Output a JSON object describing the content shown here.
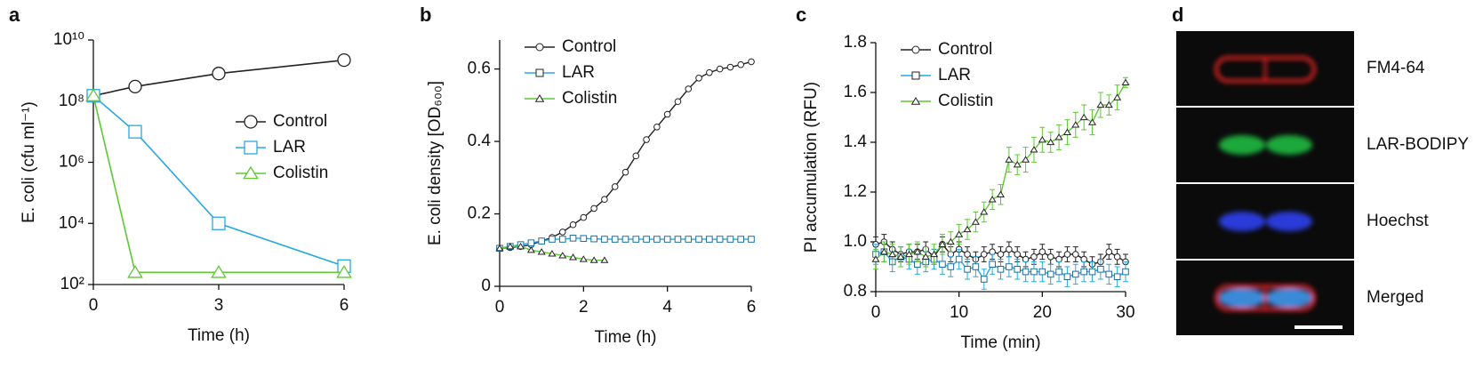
{
  "chart_data": [
    {
      "type": "line",
      "panel_label": "a",
      "xlabel": "Time (h)",
      "ylabel": "E. coli (cfu ml⁻¹)",
      "log_scale_y": true,
      "legend": "center right",
      "x": [
        0,
        1,
        3,
        6
      ],
      "xlim": [
        0,
        6
      ],
      "xticks": [
        0,
        3,
        6
      ],
      "ylim": [
        100,
        10000000000
      ],
      "yticks": [
        {
          "value": 100,
          "label": "10²"
        },
        {
          "value": 10000,
          "label": "10⁴"
        },
        {
          "value": 1000000,
          "label": "10⁶"
        },
        {
          "value": 100000000,
          "label": "10⁸"
        },
        {
          "value": 10000000000,
          "label": "10¹⁰"
        }
      ],
      "series": [
        {
          "name": "Control",
          "color": "#222222",
          "marker": "circle",
          "values": [
            150000000,
            300000000,
            800000000,
            2200000000
          ]
        },
        {
          "name": "LAR",
          "color": "#29a8e0",
          "marker": "square",
          "values": [
            150000000,
            10000000,
            10000,
            400
          ]
        },
        {
          "name": "Colistin",
          "color": "#5dc832",
          "marker": "triangle",
          "values": [
            150000000,
            250,
            250,
            250
          ]
        }
      ]
    },
    {
      "type": "line",
      "panel_label": "b",
      "xlabel": "Time (h)",
      "ylabel": "E. coli density [OD₆₀₀]",
      "log_scale_y": false,
      "legend": "upper left",
      "x": [
        0,
        0.25,
        0.5,
        0.75,
        1,
        1.25,
        1.5,
        1.75,
        2,
        2.25,
        2.5,
        2.75,
        3,
        3.25,
        3.5,
        3.75,
        4,
        4.25,
        4.5,
        4.75,
        5,
        5.25,
        5.5,
        5.75,
        6
      ],
      "xlim": [
        0,
        6
      ],
      "xticks": [
        0,
        2,
        4,
        6
      ],
      "ylim": [
        0,
        0.68
      ],
      "yticks": [
        0,
        0.2,
        0.4,
        0.6
      ],
      "series": [
        {
          "name": "Control",
          "color": "#222222",
          "marker": "circle",
          "values": [
            0.105,
            0.107,
            0.11,
            0.115,
            0.125,
            0.135,
            0.15,
            0.17,
            0.19,
            0.215,
            0.24,
            0.275,
            0.315,
            0.36,
            0.405,
            0.44,
            0.475,
            0.51,
            0.545,
            0.575,
            0.59,
            0.6,
            0.605,
            0.612,
            0.62
          ]
        },
        {
          "name": "LAR",
          "color": "#29a8e0",
          "marker": "square",
          "values": [
            0.105,
            0.11,
            0.115,
            0.12,
            0.125,
            0.13,
            0.13,
            0.133,
            0.132,
            0.131,
            0.13,
            0.13,
            0.13,
            0.13,
            0.13,
            0.13,
            0.13,
            0.13,
            0.13,
            0.13,
            0.13,
            0.13,
            0.13,
            0.13,
            0.13
          ]
        },
        {
          "name": "Colistin",
          "color": "#5dc832",
          "marker": "triangle",
          "values": [
            0.105,
            0.11,
            0.11,
            0.1,
            0.095,
            0.09,
            0.085,
            0.08,
            0.075,
            0.072,
            0.072,
            null,
            null,
            null,
            null,
            null,
            null,
            null,
            null,
            null,
            null,
            null,
            null,
            null,
            null
          ]
        }
      ]
    },
    {
      "type": "line",
      "panel_label": "c",
      "xlabel": "Time (min)",
      "ylabel": "PI accumulation (RFU)",
      "log_scale_y": false,
      "legend": "upper left",
      "x": [
        0,
        1,
        2,
        3,
        4,
        5,
        6,
        7,
        8,
        9,
        10,
        11,
        12,
        13,
        14,
        15,
        16,
        17,
        18,
        19,
        20,
        21,
        22,
        23,
        24,
        25,
        26,
        27,
        28,
        29,
        30
      ],
      "xlim": [
        0,
        30
      ],
      "xticks": [
        0,
        10,
        20,
        30
      ],
      "ylim": [
        0.8,
        1.8
      ],
      "yticks": [
        0.8,
        {
          "value": 1,
          "label": "1.0"
        },
        1.2,
        1.4,
        1.6,
        1.8
      ],
      "series": [
        {
          "name": "Control",
          "color": "#222222",
          "marker": "circle",
          "values": [
            0.99,
            1.0,
            0.97,
            0.95,
            0.96,
            0.96,
            0.97,
            0.94,
            0.99,
            0.95,
            0.97,
            0.95,
            0.93,
            0.95,
            0.96,
            0.95,
            0.97,
            0.95,
            0.93,
            0.94,
            0.96,
            0.94,
            0.93,
            0.95,
            0.95,
            0.93,
            0.91,
            0.92,
            0.96,
            0.94,
            0.92
          ],
          "errors": [
            0.03,
            0.03,
            0.03,
            0.03,
            0.03,
            0.03,
            0.03,
            0.03,
            0.03,
            0.03,
            0.03,
            0.03,
            0.03,
            0.03,
            0.03,
            0.03,
            0.03,
            0.03,
            0.03,
            0.03,
            0.03,
            0.03,
            0.03,
            0.03,
            0.03,
            0.03,
            0.03,
            0.03,
            0.03,
            0.03,
            0.03
          ]
        },
        {
          "name": "LAR",
          "color": "#29a8e0",
          "marker": "square",
          "values": [
            0.95,
            0.96,
            0.92,
            0.94,
            0.93,
            0.91,
            0.92,
            0.93,
            0.91,
            0.9,
            0.93,
            0.89,
            0.9,
            0.85,
            0.91,
            0.89,
            0.9,
            0.89,
            0.88,
            0.88,
            0.88,
            0.87,
            0.88,
            0.86,
            0.87,
            0.88,
            0.88,
            0.89,
            0.87,
            0.86,
            0.88
          ],
          "errors": [
            0.04,
            0.04,
            0.04,
            0.04,
            0.04,
            0.04,
            0.04,
            0.04,
            0.04,
            0.04,
            0.04,
            0.04,
            0.04,
            0.04,
            0.04,
            0.04,
            0.04,
            0.04,
            0.04,
            0.04,
            0.04,
            0.04,
            0.04,
            0.04,
            0.04,
            0.04,
            0.04,
            0.04,
            0.04,
            0.04,
            0.04
          ]
        },
        {
          "name": "Colistin",
          "color": "#5dc832",
          "marker": "triangle",
          "values": [
            0.93,
            0.96,
            0.95,
            0.94,
            0.95,
            0.96,
            0.94,
            0.95,
            0.99,
            1.0,
            1.03,
            1.05,
            1.08,
            1.12,
            1.17,
            1.19,
            1.33,
            1.31,
            1.33,
            1.37,
            1.41,
            1.4,
            1.42,
            1.44,
            1.47,
            1.5,
            1.48,
            1.55,
            1.55,
            1.58,
            1.64
          ],
          "errors": [
            0.04,
            0.04,
            0.04,
            0.04,
            0.04,
            0.04,
            0.04,
            0.04,
            0.04,
            0.04,
            0.04,
            0.04,
            0.04,
            0.04,
            0.04,
            0.04,
            0.05,
            0.04,
            0.05,
            0.05,
            0.05,
            0.04,
            0.05,
            0.05,
            0.05,
            0.05,
            0.05,
            0.05,
            0.04,
            0.05,
            0.02
          ]
        }
      ]
    }
  ],
  "image_panel": {
    "panel_label": "d",
    "channels": [
      "FM4-64",
      "LAR-BODIPY",
      "Hoechst",
      "Merged"
    ]
  }
}
